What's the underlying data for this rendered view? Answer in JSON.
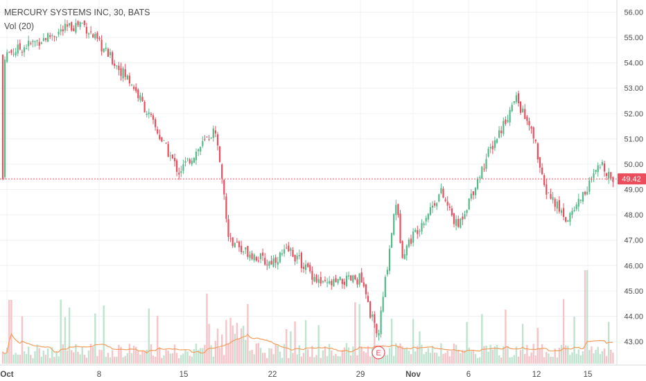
{
  "legend": {
    "title": "MERCURY SYSTEMS INC, 30, BATS",
    "indicator": "Vol (20)"
  },
  "price_label": "49.42",
  "earnings_marker": "E",
  "colors": {
    "up": "#53b987",
    "down": "#eb4d5c",
    "up_vol": "#bfe3cf",
    "down_vol": "#f5c3c8",
    "vol_ma": "#f39c5a",
    "price_line": "#eb4d5c",
    "grid": "#eef0f3",
    "axis_text": "#4a4a4a"
  },
  "chart_data": {
    "type": "candlestick",
    "title": "MERCURY SYSTEMS INC, 30, BATS",
    "timeframe": "30",
    "y_ticks": [
      "56.00",
      "55.00",
      "54.00",
      "53.00",
      "52.00",
      "51.00",
      "50.00",
      "49.00",
      "48.00",
      "47.00",
      "46.00",
      "45.00",
      "44.00",
      "43.00"
    ],
    "ylim": [
      42.3,
      56.3
    ],
    "x_ticks": [
      "Oct",
      "8",
      "15",
      "22",
      "29",
      "Nov",
      "6",
      "12",
      "15"
    ],
    "last_price": 49.42,
    "grid": true,
    "series_anchors": [
      {
        "t": "Oct",
        "close": 54.3
      },
      {
        "t": "Oct 5",
        "close": 55.6
      },
      {
        "t": "Oct 8",
        "close": 54.5
      },
      {
        "t": "Oct 10",
        "close": 53.2
      },
      {
        "t": "Oct 12",
        "close": 50.6
      },
      {
        "t": "Oct 15",
        "close": 49.7
      },
      {
        "t": "Oct 17",
        "close": 51.4
      },
      {
        "t": "Oct 18",
        "close": 47.0
      },
      {
        "t": "Oct 22",
        "close": 46.1
      },
      {
        "t": "Oct 24",
        "close": 46.6
      },
      {
        "t": "Oct 25",
        "close": 45.2
      },
      {
        "t": "Oct 29",
        "close": 45.5
      },
      {
        "t": "Oct 30",
        "close": 43.1
      },
      {
        "t": "Oct 31",
        "close": 48.6
      },
      {
        "t": "Nov 1",
        "close": 46.5
      },
      {
        "t": "Nov 2",
        "close": 48.9
      },
      {
        "t": "Nov 5",
        "close": 47.5
      },
      {
        "t": "Nov 7",
        "close": 50.5
      },
      {
        "t": "Nov 9",
        "close": 52.6
      },
      {
        "t": "Nov 12",
        "close": 50.9
      },
      {
        "t": "Nov 13",
        "close": 49.1
      },
      {
        "t": "Nov 14",
        "close": 47.8
      },
      {
        "t": "Nov 15",
        "close": 50.0
      },
      {
        "t": "Nov 16",
        "close": 49.42
      }
    ]
  }
}
